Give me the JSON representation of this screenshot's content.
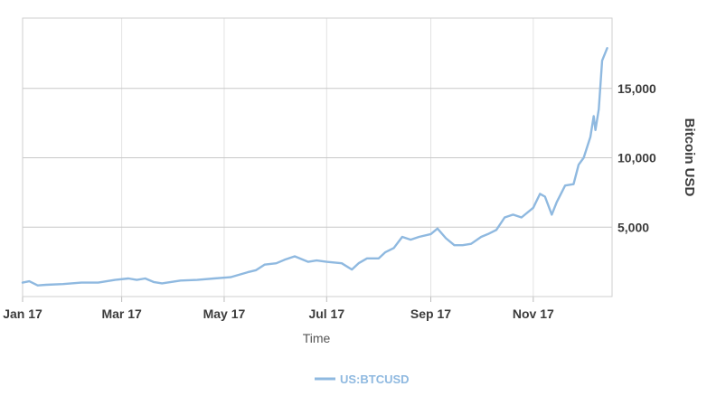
{
  "chart_data": {
    "type": "line",
    "xlabel": "Time",
    "ylabel": "Bitcoin USD",
    "x_ticks": [
      "Jan 17",
      "Mar 17",
      "May 17",
      "Jul 17",
      "Sep 17",
      "Nov 17"
    ],
    "y_ticks": [
      "5,000",
      "10,000",
      "15,000"
    ],
    "y_tick_values": [
      5000,
      10000,
      15000
    ],
    "xlim": [
      "2017-01-01",
      "2017-12-15"
    ],
    "ylim": [
      0,
      20000
    ],
    "grid": true,
    "legend_position": "bottom",
    "line_color": "#8fb9e0",
    "series": [
      {
        "name": "US:BTCUSD",
        "x": [
          "2017-01-01",
          "2017-01-05",
          "2017-01-10",
          "2017-01-15",
          "2017-01-25",
          "2017-02-05",
          "2017-02-15",
          "2017-02-25",
          "2017-03-05",
          "2017-03-10",
          "2017-03-15",
          "2017-03-20",
          "2017-03-25",
          "2017-04-05",
          "2017-04-15",
          "2017-04-25",
          "2017-05-05",
          "2017-05-15",
          "2017-05-20",
          "2017-05-25",
          "2017-06-01",
          "2017-06-06",
          "2017-06-12",
          "2017-06-20",
          "2017-06-25",
          "2017-07-01",
          "2017-07-10",
          "2017-07-16",
          "2017-07-20",
          "2017-07-25",
          "2017-08-01",
          "2017-08-05",
          "2017-08-10",
          "2017-08-15",
          "2017-08-20",
          "2017-08-25",
          "2017-09-01",
          "2017-09-05",
          "2017-09-10",
          "2017-09-15",
          "2017-09-20",
          "2017-09-25",
          "2017-10-01",
          "2017-10-05",
          "2017-10-10",
          "2017-10-15",
          "2017-10-20",
          "2017-10-25",
          "2017-11-01",
          "2017-11-05",
          "2017-11-08",
          "2017-11-12",
          "2017-11-15",
          "2017-11-20",
          "2017-11-25",
          "2017-11-28",
          "2017-12-01",
          "2017-12-05",
          "2017-12-07",
          "2017-12-08",
          "2017-12-10",
          "2017-12-12",
          "2017-12-15"
        ],
        "values": [
          1000,
          1100,
          800,
          850,
          900,
          1000,
          1000,
          1200,
          1300,
          1200,
          1300,
          1050,
          950,
          1150,
          1200,
          1300,
          1400,
          1750,
          1900,
          2300,
          2400,
          2650,
          2900,
          2500,
          2600,
          2500,
          2400,
          1950,
          2400,
          2750,
          2750,
          3200,
          3500,
          4300,
          4100,
          4300,
          4500,
          4900,
          4200,
          3700,
          3700,
          3800,
          4300,
          4500,
          4800,
          5700,
          5900,
          5700,
          6400,
          7400,
          7200,
          5900,
          6800,
          8000,
          8100,
          9500,
          10000,
          11500,
          13000,
          12000,
          13500,
          17000,
          17900
        ]
      }
    ]
  }
}
